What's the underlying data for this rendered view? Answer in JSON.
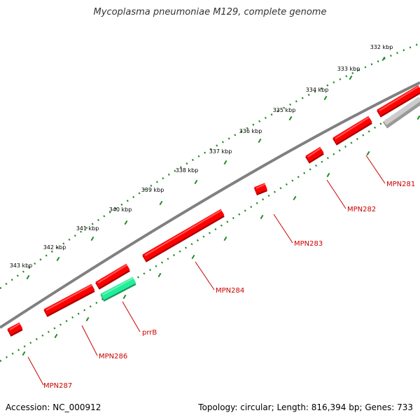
{
  "title": "Mycoplasma pneumoniae M129, complete genome",
  "footer": {
    "accession": "Accession: NC_000912",
    "summary": "Topology: circular; Length: 816,394 bp; Genes: 733"
  },
  "ruler": {
    "labels": [
      "332 kbp",
      "333 kbp",
      "334 kbp",
      "335 kbp",
      "336 kbp",
      "337 kbp",
      "338 kbp",
      "339 kbp",
      "340 kbp",
      "341 kbp",
      "342 kbp",
      "343 kbp"
    ]
  },
  "genes": [
    {
      "label": "MPN281",
      "strand": "forward",
      "color": "#ff0000"
    },
    {
      "label": "MPN282",
      "strand": "forward",
      "color": "#ff0000"
    },
    {
      "label": "MPN283",
      "strand": "forward",
      "color": "#ff0000"
    },
    {
      "label": "MPN284",
      "strand": "forward",
      "color": "#ff0000"
    },
    {
      "label": "prrB",
      "strand": "reverse",
      "color": "#22ee99"
    },
    {
      "label": "MPN286",
      "strand": "forward",
      "color": "#ff0000"
    },
    {
      "label": "MPN287",
      "strand": "forward",
      "color": "#ff0000"
    }
  ],
  "colors": {
    "cds": "#ff0000",
    "rna": "#22ee99",
    "other": "#cccccc",
    "backbone": "#808080",
    "tick": "#228b22",
    "label": "#cc0000"
  }
}
